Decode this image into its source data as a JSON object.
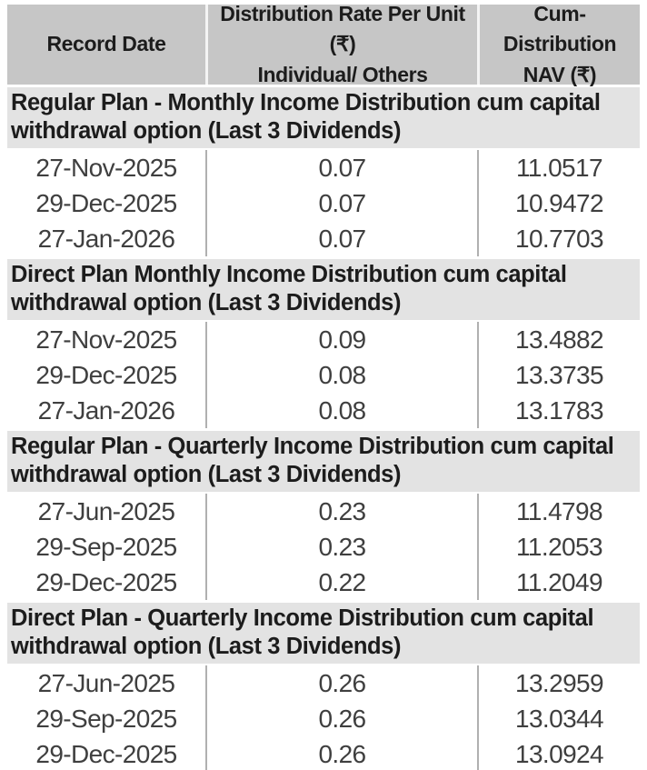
{
  "colors": {
    "header_bg": "#c6c6c6",
    "section_bg": "#e3e3e3",
    "header_text": "#1c1c1c",
    "data_text": "#3f3f3f",
    "divider": "#b0b0b0",
    "bottom_rule": "#595959"
  },
  "header": {
    "col1": "Record Date",
    "col2_line1": "Distribution Rate Per Unit (₹)",
    "col2_line2": "Individual/ Others",
    "col3_line1": "Cum-Distribution",
    "col3_line2": "NAV (₹)"
  },
  "sections": [
    {
      "title_line1": "Regular Plan - Monthly Income Distribution cum capital",
      "title_line2": "withdrawal option (Last 3 Dividends)",
      "rows": [
        {
          "date": "27-Nov-2025",
          "rate": "0.07",
          "nav": "11.0517"
        },
        {
          "date": "29-Dec-2025",
          "rate": "0.07",
          "nav": "10.9472"
        },
        {
          "date": "27-Jan-2026",
          "rate": "0.07",
          "nav": "10.7703"
        }
      ]
    },
    {
      "title_line1": "Direct Plan Monthly Income Distribution cum capital",
      "title_line2": "withdrawal option (Last 3 Dividends)",
      "rows": [
        {
          "date": "27-Nov-2025",
          "rate": "0.09",
          "nav": "13.4882"
        },
        {
          "date": "29-Dec-2025",
          "rate": "0.08",
          "nav": "13.3735"
        },
        {
          "date": "27-Jan-2026",
          "rate": "0.08",
          "nav": "13.1783"
        }
      ]
    },
    {
      "title_line1": "Regular Plan - Quarterly Income Distribution cum capital",
      "title_line2": "withdrawal option (Last 3 Dividends)",
      "rows": [
        {
          "date": "27-Jun-2025",
          "rate": "0.23",
          "nav": "11.4798"
        },
        {
          "date": "29-Sep-2025",
          "rate": "0.23",
          "nav": "11.2053"
        },
        {
          "date": "29-Dec-2025",
          "rate": "0.22",
          "nav": "11.2049"
        }
      ]
    },
    {
      "title_line1": "Direct Plan - Quarterly Income Distribution cum capital",
      "title_line2": "withdrawal option (Last 3 Dividends)",
      "rows": [
        {
          "date": "27-Jun-2025",
          "rate": "0.26",
          "nav": "13.2959"
        },
        {
          "date": "29-Sep-2025",
          "rate": "0.26",
          "nav": "13.0344"
        },
        {
          "date": "29-Dec-2025",
          "rate": "0.26",
          "nav": "13.0924"
        }
      ]
    }
  ]
}
